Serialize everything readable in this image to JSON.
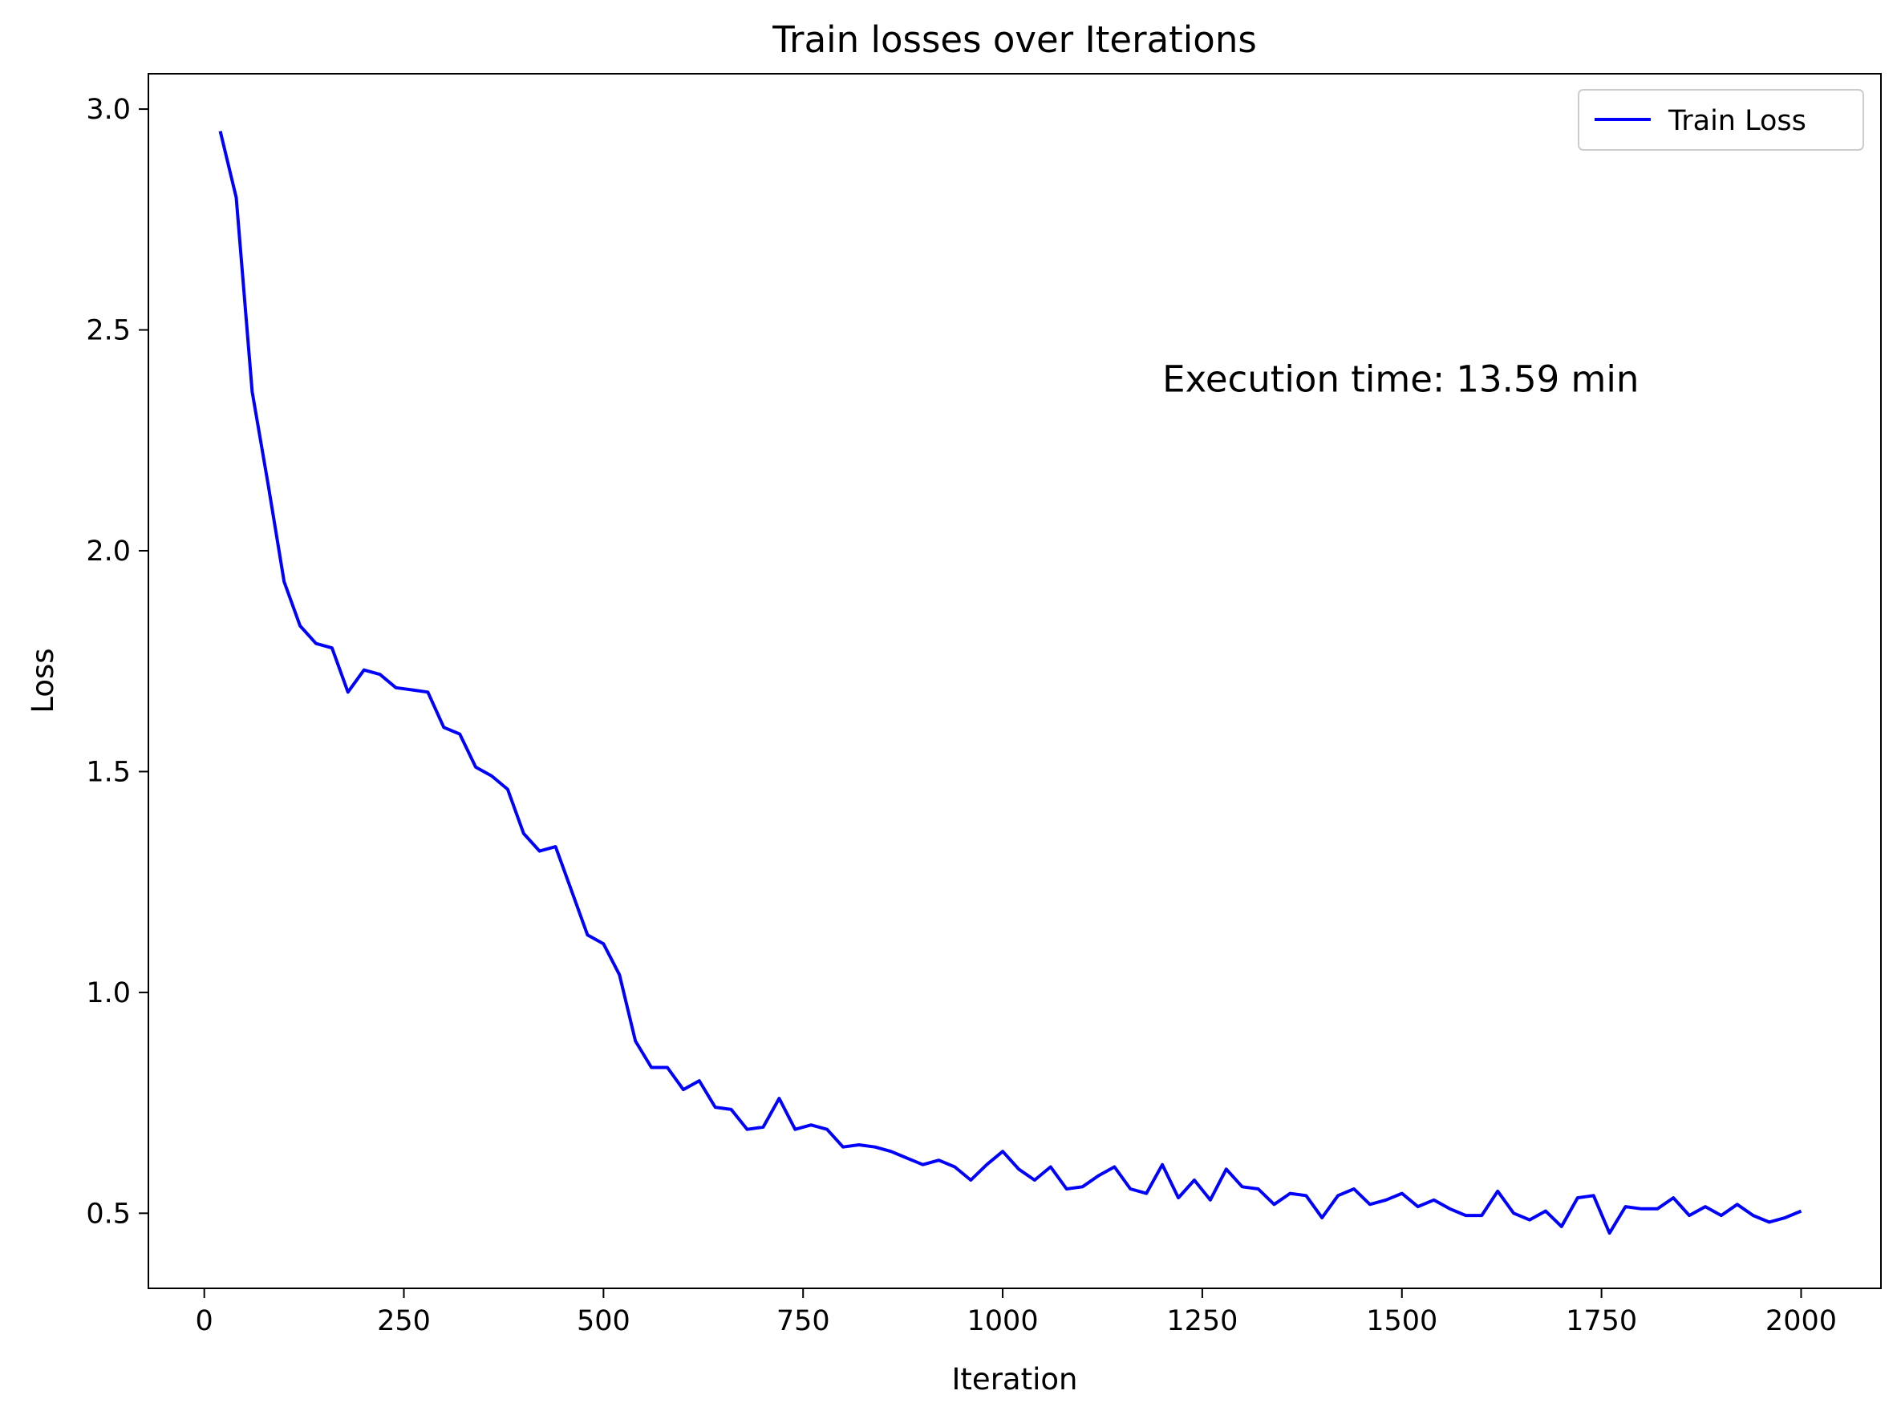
{
  "chart_data": {
    "type": "line",
    "title": "Train losses over Iterations",
    "xlabel": "Iteration",
    "ylabel": "Loss",
    "xlim": [
      -70,
      2100
    ],
    "ylim": [
      0.33,
      3.08
    ],
    "xticks": [
      0,
      250,
      500,
      750,
      1000,
      1250,
      1500,
      1750,
      2000
    ],
    "yticks": [
      0.5,
      1.0,
      1.5,
      2.0,
      2.5,
      3.0
    ],
    "xtick_labels": [
      "0",
      "250",
      "500",
      "750",
      "1000",
      "1250",
      "1500",
      "1750",
      "2000"
    ],
    "ytick_labels": [
      "0.5",
      "1.0",
      "1.5",
      "2.0",
      "2.5",
      "3.0"
    ],
    "grid": false,
    "legend_position": "top-right",
    "annotation": {
      "text": "Execution time: 13.59 min",
      "x": 1200,
      "y": 2.36
    },
    "series": [
      {
        "name": "Train Loss",
        "color": "#0000ff",
        "x": [
          20,
          40,
          60,
          80,
          100,
          120,
          140,
          160,
          180,
          200,
          220,
          240,
          260,
          280,
          300,
          320,
          340,
          360,
          380,
          400,
          420,
          440,
          460,
          480,
          500,
          520,
          540,
          560,
          580,
          600,
          620,
          640,
          660,
          680,
          700,
          720,
          740,
          760,
          780,
          800,
          820,
          840,
          860,
          880,
          900,
          920,
          940,
          960,
          980,
          1000,
          1020,
          1040,
          1060,
          1080,
          1100,
          1120,
          1140,
          1160,
          1180,
          1200,
          1220,
          1240,
          1260,
          1280,
          1300,
          1320,
          1340,
          1360,
          1380,
          1400,
          1420,
          1440,
          1460,
          1480,
          1500,
          1520,
          1540,
          1560,
          1580,
          1600,
          1620,
          1640,
          1660,
          1680,
          1700,
          1720,
          1740,
          1760,
          1780,
          1800,
          1820,
          1840,
          1860,
          1880,
          1900,
          1920,
          1940,
          1960,
          1980,
          2000
        ],
        "y": [
          2.95,
          2.8,
          2.36,
          2.15,
          1.93,
          1.83,
          1.79,
          1.78,
          1.68,
          1.73,
          1.72,
          1.69,
          1.685,
          1.68,
          1.6,
          1.585,
          1.51,
          1.49,
          1.46,
          1.36,
          1.32,
          1.33,
          1.23,
          1.13,
          1.11,
          1.04,
          0.89,
          0.83,
          0.83,
          0.78,
          0.8,
          0.74,
          0.735,
          0.69,
          0.695,
          0.76,
          0.69,
          0.7,
          0.69,
          0.65,
          0.655,
          0.65,
          0.64,
          0.625,
          0.61,
          0.62,
          0.605,
          0.575,
          0.61,
          0.64,
          0.6,
          0.575,
          0.605,
          0.555,
          0.56,
          0.585,
          0.605,
          0.555,
          0.545,
          0.61,
          0.535,
          0.575,
          0.53,
          0.6,
          0.56,
          0.555,
          0.52,
          0.545,
          0.54,
          0.49,
          0.54,
          0.555,
          0.52,
          0.53,
          0.545,
          0.515,
          0.53,
          0.51,
          0.495,
          0.495,
          0.55,
          0.5,
          0.485,
          0.505,
          0.47,
          0.535,
          0.54,
          0.455,
          0.515,
          0.51,
          0.51,
          0.535,
          0.495,
          0.515,
          0.495,
          0.52,
          0.495,
          0.48,
          0.49,
          0.505
        ]
      }
    ]
  }
}
